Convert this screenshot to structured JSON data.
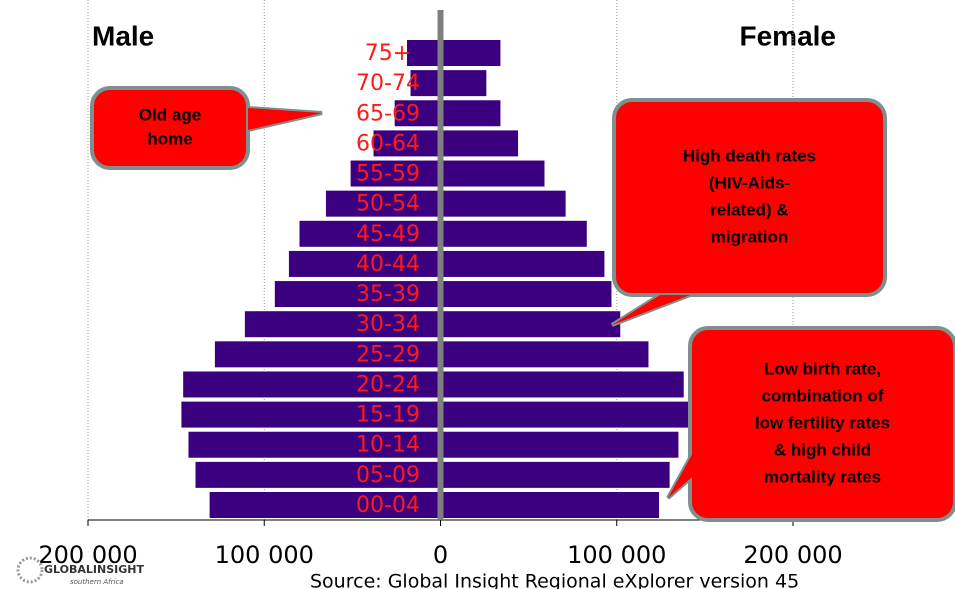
{
  "chart_data": {
    "type": "population_pyramid",
    "categories": [
      "00-04",
      "05-09",
      "10-14",
      "15-19",
      "20-24",
      "25-29",
      "30-34",
      "35-39",
      "40-44",
      "45-49",
      "50-54",
      "55-59",
      "60-64",
      "65-69",
      "70-74",
      "75+"
    ],
    "series": [
      {
        "name": "Male",
        "color": "#3b0080",
        "values": [
          -131000,
          -139000,
          -143000,
          -147000,
          -146000,
          -128000,
          -111000,
          -94000,
          -86000,
          -80000,
          -65000,
          -51000,
          -38000,
          -26000,
          -17000,
          -19000
        ]
      },
      {
        "name": "Female",
        "color": "#3b0080",
        "values": [
          124000,
          130000,
          135000,
          141000,
          138000,
          118000,
          102000,
          97000,
          93000,
          83000,
          71000,
          59000,
          44000,
          34000,
          26000,
          34000
        ]
      }
    ],
    "xlim": [
      -200000,
      200000
    ],
    "xticks": [
      {
        "value": -200000,
        "label": "200 000"
      },
      {
        "value": -100000,
        "label": "100 000"
      },
      0,
      {
        "value": 100000,
        "label": "100 000"
      },
      {
        "value": 200000,
        "label": "200 000"
      }
    ],
    "grid": true,
    "category_label_color": "#ff1a1a",
    "annotations": [
      {
        "lines": [
          "Old age",
          "home"
        ]
      },
      {
        "lines": [
          "High death rates",
          "(HIV-Aids-",
          "related) &",
          "migration"
        ]
      },
      {
        "lines": [
          "Low birth rate,",
          "combination of",
          "low fertility rates",
          "& high child",
          "mortality rates"
        ]
      }
    ],
    "source": "Source: Global Insight Regional eXplorer version 45",
    "logo": {
      "name": "GLOBALINSIGHT",
      "tagline": "southern Africa"
    }
  }
}
